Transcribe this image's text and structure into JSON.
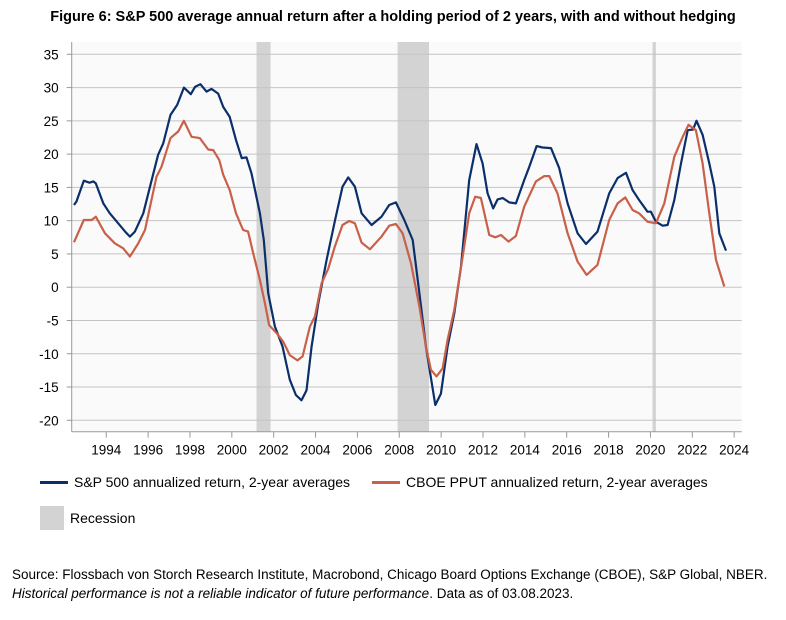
{
  "chart_data": {
    "type": "line",
    "title": "Figure 6: S&P 500 average annual return after a holding period of 2 years, with and without hedging",
    "xlabel": "",
    "ylabel": "",
    "xlim": [
      1992.35,
      2024.36
    ],
    "ylim": [
      -20,
      35
    ],
    "x_ticks": [
      "1994",
      "1996",
      "1998",
      "2000",
      "2002",
      "2004",
      "2006",
      "2008",
      "2010",
      "2012",
      "2014",
      "2016",
      "2018",
      "2020",
      "2022",
      "2024"
    ],
    "y_ticks": [
      "35",
      "30",
      "25",
      "20",
      "15",
      "10",
      "5",
      "0",
      "-5",
      "-10",
      "-15",
      "-20"
    ],
    "grid": "horizontal",
    "legend_placement": "bottom",
    "recessions": [
      {
        "start": 2001.18,
        "end": 2001.85
      },
      {
        "start": 2007.92,
        "end": 2009.42
      },
      {
        "start": 2020.1,
        "end": 2020.26
      }
    ],
    "recession_label": "Recession",
    "recession_color": "#d3d3d3",
    "series": [
      {
        "name": "S&P 500 annualized return, 2-year averages",
        "color": "#0b2f6b",
        "points": [
          [
            1992.46,
            12.35
          ],
          [
            1992.58,
            12.9
          ],
          [
            1992.93,
            16.0
          ],
          [
            1993.2,
            15.7
          ],
          [
            1993.38,
            15.9
          ],
          [
            1993.5,
            15.6
          ],
          [
            1993.86,
            12.6
          ],
          [
            1994.17,
            11.1
          ],
          [
            1994.57,
            9.6
          ],
          [
            1994.9,
            8.35
          ],
          [
            1995.13,
            7.6
          ],
          [
            1995.37,
            8.35
          ],
          [
            1995.77,
            11.1
          ],
          [
            1996.09,
            15.1
          ],
          [
            1996.48,
            19.9
          ],
          [
            1996.72,
            21.6
          ],
          [
            1997.07,
            25.9
          ],
          [
            1997.39,
            27.4
          ],
          [
            1997.71,
            30.0
          ],
          [
            1998.04,
            29.0
          ],
          [
            1998.24,
            30.1
          ],
          [
            1998.5,
            30.5
          ],
          [
            1998.79,
            29.4
          ],
          [
            1999.03,
            29.8
          ],
          [
            1999.35,
            29.1
          ],
          [
            1999.59,
            27.1
          ],
          [
            1999.9,
            25.6
          ],
          [
            2000.2,
            22.1
          ],
          [
            2000.47,
            19.4
          ],
          [
            2000.7,
            19.5
          ],
          [
            2000.94,
            17.1
          ],
          [
            2001.34,
            11.1
          ],
          [
            2001.53,
            7.1
          ],
          [
            2001.74,
            -0.9
          ],
          [
            2002.06,
            -5.9
          ],
          [
            2002.42,
            -8.9
          ],
          [
            2002.77,
            -13.9
          ],
          [
            2003.06,
            -16.2
          ],
          [
            2003.33,
            -17.0
          ],
          [
            2003.57,
            -15.5
          ],
          [
            2003.81,
            -8.9
          ],
          [
            2004.13,
            -2.4
          ],
          [
            2004.53,
            4.1
          ],
          [
            2004.92,
            9.9
          ],
          [
            2005.29,
            15.1
          ],
          [
            2005.56,
            16.5
          ],
          [
            2005.88,
            15.1
          ],
          [
            2006.2,
            11.1
          ],
          [
            2006.68,
            9.35
          ],
          [
            2007.15,
            10.6
          ],
          [
            2007.52,
            12.35
          ],
          [
            2007.84,
            12.75
          ],
          [
            2008.24,
            10.1
          ],
          [
            2008.64,
            7.1
          ],
          [
            2008.96,
            -0.9
          ],
          [
            2009.27,
            -8.9
          ],
          [
            2009.72,
            -17.7
          ],
          [
            2009.99,
            -16.0
          ],
          [
            2010.31,
            -8.9
          ],
          [
            2010.63,
            -3.9
          ],
          [
            2010.95,
            3.1
          ],
          [
            2011.34,
            16.1
          ],
          [
            2011.69,
            21.5
          ],
          [
            2011.98,
            18.6
          ],
          [
            2012.22,
            14.1
          ],
          [
            2012.49,
            11.85
          ],
          [
            2012.7,
            13.2
          ],
          [
            2012.94,
            13.4
          ],
          [
            2013.25,
            12.75
          ],
          [
            2013.57,
            12.6
          ],
          [
            2013.97,
            16.1
          ],
          [
            2014.21,
            18.1
          ],
          [
            2014.56,
            21.2
          ],
          [
            2014.85,
            21.0
          ],
          [
            2015.25,
            20.9
          ],
          [
            2015.64,
            17.9
          ],
          [
            2016.04,
            12.6
          ],
          [
            2016.52,
            8.1
          ],
          [
            2016.92,
            6.5
          ],
          [
            2017.47,
            8.35
          ],
          [
            2018.03,
            14.1
          ],
          [
            2018.43,
            16.4
          ],
          [
            2018.83,
            17.2
          ],
          [
            2019.15,
            14.6
          ],
          [
            2019.46,
            13.1
          ],
          [
            2019.86,
            11.35
          ],
          [
            2020.02,
            11.35
          ],
          [
            2020.26,
            9.85
          ],
          [
            2020.58,
            9.25
          ],
          [
            2020.82,
            9.35
          ],
          [
            2021.14,
            13.1
          ],
          [
            2021.46,
            18.6
          ],
          [
            2021.78,
            23.6
          ],
          [
            2022.04,
            23.7
          ],
          [
            2022.2,
            25.0
          ],
          [
            2022.49,
            22.9
          ],
          [
            2022.81,
            18.6
          ],
          [
            2023.05,
            15.1
          ],
          [
            2023.29,
            8.1
          ],
          [
            2023.61,
            5.5
          ]
        ]
      },
      {
        "name": "CBOE PPUT annualized return, 2-year averages",
        "color": "#c8604a",
        "points": [
          [
            1992.46,
            6.75
          ],
          [
            1992.93,
            10.1
          ],
          [
            1993.3,
            10.1
          ],
          [
            1993.5,
            10.6
          ],
          [
            1993.94,
            8.1
          ],
          [
            1994.41,
            6.6
          ],
          [
            1994.81,
            5.85
          ],
          [
            1995.13,
            4.6
          ],
          [
            1995.53,
            6.6
          ],
          [
            1995.85,
            8.6
          ],
          [
            1996.4,
            16.6
          ],
          [
            1996.64,
            18.1
          ],
          [
            1997.07,
            22.4
          ],
          [
            1997.44,
            23.4
          ],
          [
            1997.71,
            25.0
          ],
          [
            1998.08,
            22.6
          ],
          [
            1998.47,
            22.4
          ],
          [
            1998.87,
            20.7
          ],
          [
            1999.11,
            20.6
          ],
          [
            1999.4,
            19.1
          ],
          [
            1999.59,
            16.9
          ],
          [
            1999.9,
            14.6
          ],
          [
            2000.2,
            11.1
          ],
          [
            2000.54,
            8.6
          ],
          [
            2000.78,
            8.35
          ],
          [
            2001.02,
            5.1
          ],
          [
            2001.34,
            1.1
          ],
          [
            2001.58,
            -2.4
          ],
          [
            2001.78,
            -5.7
          ],
          [
            2002.14,
            -6.9
          ],
          [
            2002.46,
            -8.2
          ],
          [
            2002.77,
            -10.2
          ],
          [
            2003.14,
            -11.0
          ],
          [
            2003.38,
            -10.4
          ],
          [
            2003.73,
            -5.9
          ],
          [
            2003.97,
            -4.4
          ],
          [
            2004.29,
            0.6
          ],
          [
            2004.61,
            2.8
          ],
          [
            2004.92,
            6.1
          ],
          [
            2005.29,
            9.35
          ],
          [
            2005.61,
            9.95
          ],
          [
            2005.88,
            9.6
          ],
          [
            2006.2,
            6.7
          ],
          [
            2006.6,
            5.7
          ],
          [
            2007.15,
            7.6
          ],
          [
            2007.52,
            9.25
          ],
          [
            2007.84,
            9.5
          ],
          [
            2008.16,
            8.1
          ],
          [
            2008.56,
            3.6
          ],
          [
            2008.96,
            -2.9
          ],
          [
            2009.27,
            -8.9
          ],
          [
            2009.51,
            -12.4
          ],
          [
            2009.78,
            -13.4
          ],
          [
            2010.07,
            -12.2
          ],
          [
            2010.31,
            -7.9
          ],
          [
            2010.63,
            -3.4
          ],
          [
            2011.03,
            4.6
          ],
          [
            2011.34,
            11.1
          ],
          [
            2011.63,
            13.6
          ],
          [
            2011.9,
            13.4
          ],
          [
            2012.3,
            7.85
          ],
          [
            2012.59,
            7.5
          ],
          [
            2012.86,
            7.85
          ],
          [
            2013.22,
            6.85
          ],
          [
            2013.57,
            7.7
          ],
          [
            2013.97,
            12.1
          ],
          [
            2014.53,
            15.9
          ],
          [
            2014.93,
            16.7
          ],
          [
            2015.17,
            16.7
          ],
          [
            2015.56,
            14.1
          ],
          [
            2016.04,
            8.1
          ],
          [
            2016.52,
            3.85
          ],
          [
            2016.95,
            1.85
          ],
          [
            2017.47,
            3.35
          ],
          [
            2018.03,
            10.1
          ],
          [
            2018.43,
            12.6
          ],
          [
            2018.8,
            13.5
          ],
          [
            2019.15,
            11.6
          ],
          [
            2019.46,
            11.1
          ],
          [
            2019.86,
            9.85
          ],
          [
            2020.26,
            9.6
          ],
          [
            2020.66,
            12.6
          ],
          [
            2021.14,
            19.6
          ],
          [
            2021.54,
            22.6
          ],
          [
            2021.82,
            24.4
          ],
          [
            2022.17,
            23.6
          ],
          [
            2022.49,
            18.6
          ],
          [
            2022.81,
            11.1
          ],
          [
            2023.13,
            4.1
          ],
          [
            2023.53,
            0.1
          ]
        ]
      }
    ]
  },
  "source": {
    "prefix": "Source: Flossbach von Storch Research Institute, Macrobond, Chicago Board Options Exchange (CBOE), S&P Global, NBER. ",
    "disclaimer": "Historical performance is not a reliable indicator of future performance",
    "suffix": ". Data as of 03.08.2023."
  }
}
